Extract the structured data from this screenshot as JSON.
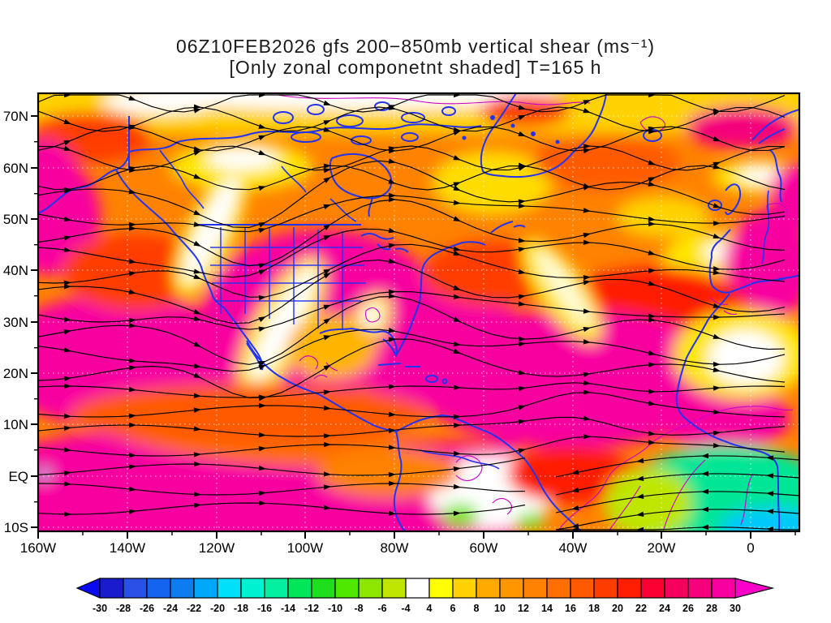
{
  "chart": {
    "title_line1": "06Z10FEB2026 gfs 200−850mb vertical shear (ms⁻¹)",
    "title_line2": "[Only zonal componetnt shaded] T=165 h"
  },
  "chart_data": {
    "type": "heatmap",
    "subtype": "shaded-streamline-weather-map",
    "title": "06Z10FEB2026 gfs 200-850mb vertical shear (ms-1)",
    "subtitle": "[Only zonal componetnt shaded] T=165 h",
    "model": "gfs",
    "valid_time_label": "06Z10FEB2026",
    "forecast_hour_label": "T=165 h",
    "layer_label": "200-850mb",
    "units": "ms-1",
    "shading_variable": "zonal component of 200-850 mb vertical wind shear",
    "x_axis": {
      "label": "longitude",
      "ticks": [
        "160W",
        "140W",
        "120W",
        "100W",
        "80W",
        "60W",
        "40W",
        "20W",
        "0"
      ]
    },
    "y_axis": {
      "label": "latitude",
      "ticks": [
        "70N",
        "60N",
        "50N",
        "40N",
        "30N",
        "20N",
        "10N",
        "EQ",
        "10S"
      ]
    },
    "grid": "white dotted graticule",
    "legend_position": "bottom horizontal colorbar",
    "colorbar": {
      "boundary_labels": [
        -30,
        -28,
        -26,
        -24,
        -22,
        -20,
        -18,
        -16,
        -14,
        -12,
        -10,
        -8,
        -6,
        -4,
        4,
        6,
        8,
        10,
        12,
        14,
        16,
        18,
        20,
        22,
        24,
        26,
        28,
        30
      ],
      "white_band": [
        -4,
        4
      ],
      "cell_colors": [
        "#1a1ace",
        "#2a50e8",
        "#1464f0",
        "#0c7cf0",
        "#00a8fa",
        "#00e0fa",
        "#00f0d2",
        "#00f0a0",
        "#00e65a",
        "#1ede1e",
        "#50e800",
        "#8ce600",
        "#bee600",
        "#ffffff",
        "#ffff00",
        "#ffd200",
        "#ffaa00",
        "#ff9600",
        "#ff8200",
        "#ff6e00",
        "#ff5a00",
        "#ff3c00",
        "#ff1e00",
        "#fa0032",
        "#f5005a",
        "#f5007d",
        "#f800a0"
      ],
      "under_arrow_color": "#0a0af0",
      "over_arrow_color": "#fa00c8"
    },
    "overlays": [
      "black streamlines with arrowheads",
      "blue coastlines, borders and lakes",
      "magenta thin contour lines",
      "white dotted graticule"
    ],
    "qualitative_field_summary": [
      "Broad 24-30+ ms-1 westerly shear (magenta) across the subtropical North Pacific, the central/eastern United States and the subtropical North Atlantic extending to northwest Africa and northern Europe",
      "Narrow near-zero shear band (white/yellow) slanting from the Canadian Rockies through the southwestern US into Mexico",
      "Yellow 4-8 ms-1 band along 70N, over Alaska, Greenland and western Europe/Mediterranean",
      "Easterly shear of -4 to -18 ms-1 (green/cyan) with westward streamlines over equatorial Africa in the southeast corner",
      "White weak-shear pocket with small easterly green patches over northwest South America near the equator"
    ]
  },
  "axes": {
    "lat_ticks": [
      "70N",
      "60N",
      "50N",
      "40N",
      "30N",
      "20N",
      "10N",
      "EQ",
      "10S"
    ],
    "lon_ticks": [
      "160W",
      "140W",
      "120W",
      "100W",
      "80W",
      "60W",
      "40W",
      "20W",
      "0"
    ]
  }
}
